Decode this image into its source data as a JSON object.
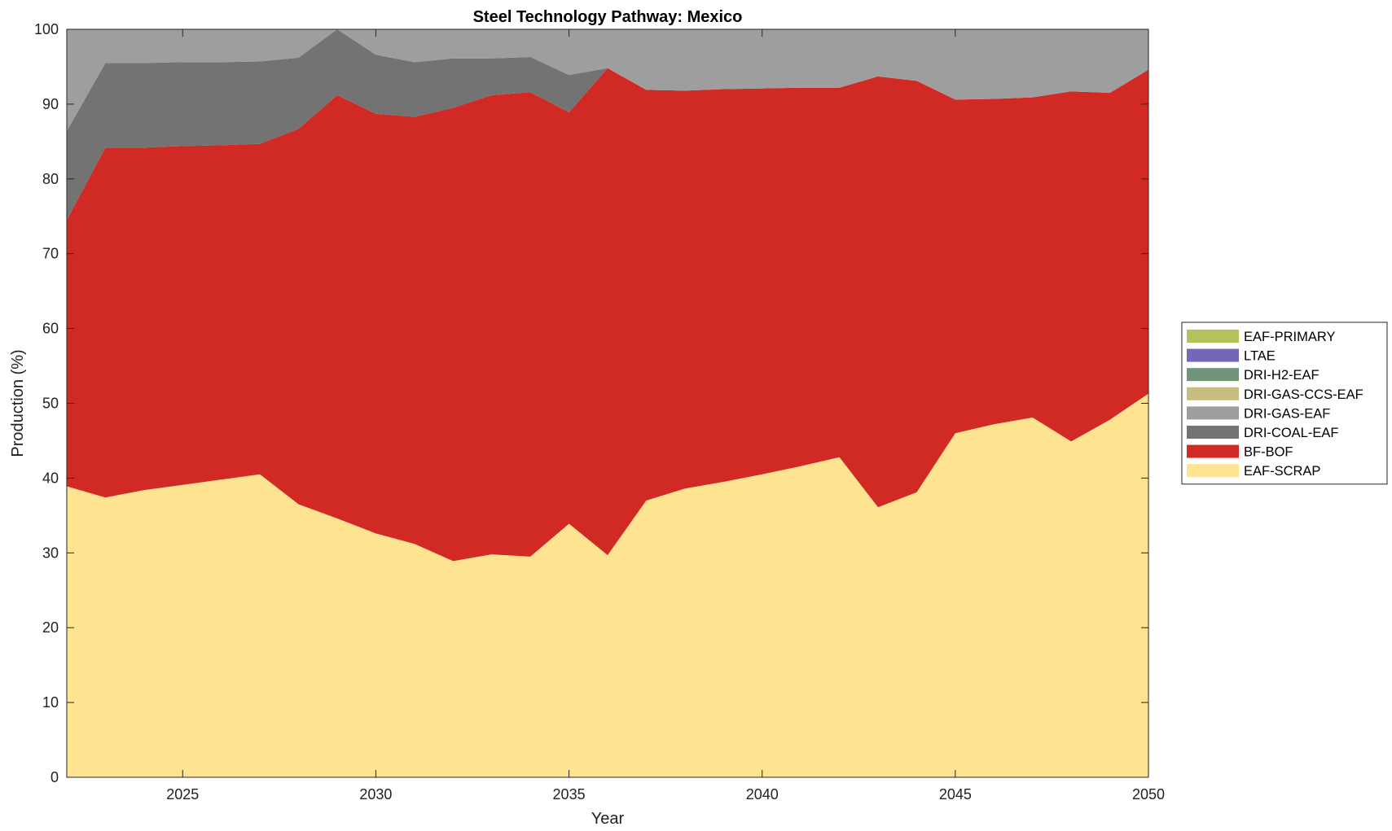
{
  "chart_data": {
    "type": "area",
    "stacked": true,
    "title": "Steel Technology Pathway: Mexico",
    "xlabel": "Year",
    "ylabel": "Production (%)",
    "xlim": [
      2022,
      2050
    ],
    "ylim": [
      0,
      100
    ],
    "xticks": [
      2025,
      2030,
      2035,
      2040,
      2045,
      2050
    ],
    "yticks": [
      0,
      10,
      20,
      30,
      40,
      50,
      60,
      70,
      80,
      90,
      100
    ],
    "grid": false,
    "legend_position": "right",
    "x": [
      2022,
      2023,
      2024,
      2025,
      2026,
      2027,
      2028,
      2029,
      2030,
      2031,
      2032,
      2033,
      2034,
      2035,
      2036,
      2037,
      2038,
      2039,
      2040,
      2041,
      2042,
      2043,
      2044,
      2045,
      2046,
      2047,
      2048,
      2049,
      2050
    ],
    "series": [
      {
        "name": "EAF-SCRAP",
        "color": "#fee391",
        "values": [
          38.9,
          37.4,
          38.4,
          39.1,
          39.8,
          40.5,
          36.5,
          34.6,
          32.6,
          31.2,
          28.9,
          29.8,
          29.5,
          33.9,
          29.7,
          37.0,
          38.6,
          39.5,
          40.5,
          41.6,
          42.8,
          36.1,
          38.1,
          46.0,
          47.2,
          48.1,
          44.9,
          47.8,
          51.3
        ]
      },
      {
        "name": "BF-BOF",
        "color": "#d12a24",
        "values": [
          35.6,
          46.8,
          45.8,
          45.3,
          44.7,
          44.2,
          50.2,
          56.6,
          56.1,
          57.1,
          60.6,
          61.4,
          62.1,
          55.0,
          65.1,
          54.9,
          53.2,
          52.5,
          51.6,
          50.6,
          49.4,
          57.6,
          55.0,
          44.6,
          43.5,
          42.8,
          46.8,
          43.7,
          43.3
        ]
      },
      {
        "name": "DRI-COAL-EAF",
        "color": "#737373",
        "values": [
          11.9,
          11.3,
          11.3,
          11.2,
          11.1,
          11.0,
          9.5,
          8.8,
          7.9,
          7.3,
          6.6,
          4.9,
          4.7,
          5.0,
          0,
          0,
          0,
          0,
          0,
          0,
          0,
          0,
          0,
          0,
          0,
          0,
          0,
          0,
          0
        ]
      },
      {
        "name": "DRI-GAS-EAF",
        "color": "#9e9e9e",
        "values": [
          13.6,
          4.5,
          4.5,
          4.4,
          4.4,
          4.3,
          3.8,
          0,
          3.4,
          4.4,
          3.9,
          3.9,
          3.7,
          6.1,
          5.2,
          8.1,
          8.2,
          8.0,
          7.9,
          7.8,
          7.8,
          6.3,
          6.9,
          9.4,
          9.3,
          9.1,
          8.3,
          8.5,
          5.4
        ]
      },
      {
        "name": "DRI-GAS-CCS-EAF",
        "color": "#c6bd7f",
        "values": [
          0,
          0,
          0,
          0,
          0,
          0,
          0,
          0,
          0,
          0,
          0,
          0,
          0,
          0,
          0,
          0,
          0,
          0,
          0,
          0,
          0,
          0,
          0,
          0,
          0,
          0,
          0,
          0,
          0
        ]
      },
      {
        "name": "DRI-H2-EAF",
        "color": "#6f967a",
        "values": [
          0,
          0,
          0,
          0,
          0,
          0,
          0,
          0,
          0,
          0,
          0,
          0,
          0,
          0,
          0,
          0,
          0,
          0,
          0,
          0,
          0,
          0,
          0,
          0,
          0,
          0,
          0,
          0,
          0
        ]
      },
      {
        "name": "LTAE",
        "color": "#7367ba",
        "values": [
          0,
          0,
          0,
          0,
          0,
          0,
          0,
          0,
          0,
          0,
          0,
          0,
          0,
          0,
          0,
          0,
          0,
          0,
          0,
          0,
          0,
          0,
          0,
          0,
          0,
          0,
          0,
          0,
          0
        ]
      },
      {
        "name": "EAF-PRIMARY",
        "color": "#b5c25c",
        "values": [
          0,
          0,
          0,
          0,
          0,
          0,
          0,
          0,
          0,
          0,
          0,
          0,
          0,
          0,
          0,
          0,
          0,
          0,
          0,
          0,
          0,
          0,
          0,
          0,
          0,
          0,
          0,
          0,
          0
        ]
      }
    ]
  }
}
